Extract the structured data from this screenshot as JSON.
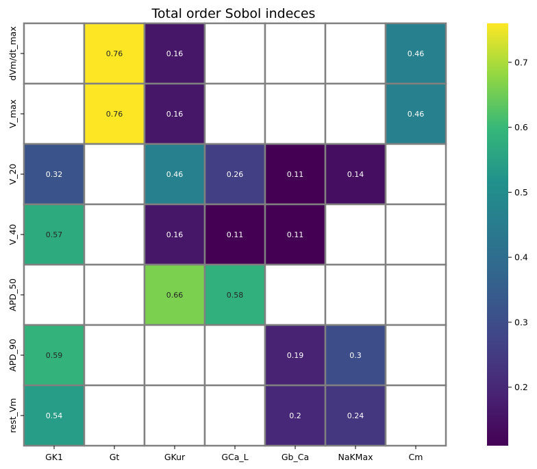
{
  "chart_data": {
    "type": "heatmap",
    "title": "Total order Sobol indeces",
    "x_categories": [
      "GK1",
      "Gt",
      "GKur",
      "GCa_L",
      "Gb_Ca",
      "NaKMax",
      "Cm"
    ],
    "y_categories": [
      "dVm/dt_max",
      "V_max",
      "V_20",
      "V_40",
      "APD_50",
      "APD_90",
      "rest_Vm"
    ],
    "values": [
      [
        null,
        0.76,
        0.16,
        null,
        null,
        null,
        0.46
      ],
      [
        null,
        0.76,
        0.16,
        null,
        null,
        null,
        0.46
      ],
      [
        0.32,
        null,
        0.46,
        0.26,
        0.11,
        0.14,
        null
      ],
      [
        0.57,
        null,
        0.16,
        0.11,
        0.11,
        null,
        null
      ],
      [
        null,
        null,
        0.66,
        0.58,
        null,
        null,
        null
      ],
      [
        0.59,
        null,
        null,
        null,
        0.19,
        0.3,
        null
      ],
      [
        0.54,
        null,
        null,
        null,
        0.2,
        0.24,
        null
      ]
    ],
    "value_labels": [
      [
        "",
        "0.76",
        "0.16",
        "",
        "",
        "",
        "0.46"
      ],
      [
        "",
        "0.76",
        "0.16",
        "",
        "",
        "",
        "0.46"
      ],
      [
        "0.32",
        "",
        "0.46",
        "0.26",
        "0.11",
        "0.14",
        ""
      ],
      [
        "0.57",
        "",
        "0.16",
        "0.11",
        "0.11",
        "",
        ""
      ],
      [
        "",
        "",
        "0.66",
        "0.58",
        "",
        "",
        ""
      ],
      [
        "0.59",
        "",
        "",
        "",
        "0.19",
        "0.3",
        ""
      ],
      [
        "0.54",
        "",
        "",
        "",
        "0.2",
        "0.24",
        ""
      ]
    ],
    "colormap": "viridis",
    "vmin": 0.11,
    "vmax": 0.76,
    "colorbar_ticks": [
      0.2,
      0.3,
      0.4,
      0.5,
      0.6,
      0.7
    ],
    "colorbar_tick_labels": [
      "0.2",
      "0.3",
      "0.4",
      "0.5",
      "0.6",
      "0.7"
    ],
    "grid_color": "#808080",
    "empty_cell_color": "#ffffff",
    "legend": "colorbar-right"
  }
}
